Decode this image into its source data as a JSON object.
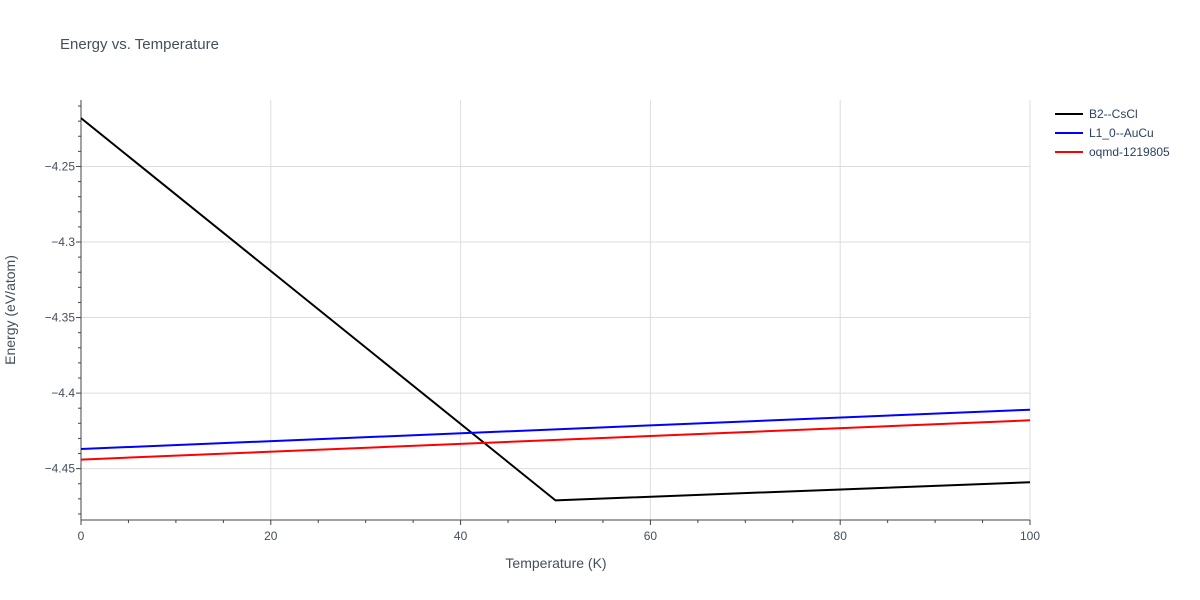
{
  "chart_data": {
    "type": "line",
    "title": "Energy vs. Temperature",
    "xlabel": "Temperature (K)",
    "ylabel": "Energy (eV/atom)",
    "xlim": [
      0,
      100
    ],
    "ylim": [
      -4.484,
      -4.206
    ],
    "xticks": [
      0,
      20,
      40,
      60,
      80,
      100
    ],
    "xtick_labels": [
      "0",
      "20",
      "40",
      "60",
      "80",
      "100"
    ],
    "yticks": [
      -4.25,
      -4.3,
      -4.35,
      -4.4,
      -4.45
    ],
    "ytick_labels": [
      "−4.25",
      "−4.3",
      "−4.35",
      "−4.4",
      "−4.45"
    ],
    "grid": true,
    "legend_position": "top-right",
    "series": [
      {
        "name": "B2--CsCl",
        "color": "#000000",
        "x": [
          0,
          50,
          100
        ],
        "y": [
          -4.218,
          -4.471,
          -4.459
        ]
      },
      {
        "name": "L1_0--AuCu",
        "color": "#0000ff",
        "x": [
          0,
          100
        ],
        "y": [
          -4.437,
          -4.411
        ]
      },
      {
        "name": "oqmd-1219805",
        "color": "#ff0000",
        "x": [
          0,
          100
        ],
        "y": [
          -4.444,
          -4.418
        ]
      }
    ]
  }
}
